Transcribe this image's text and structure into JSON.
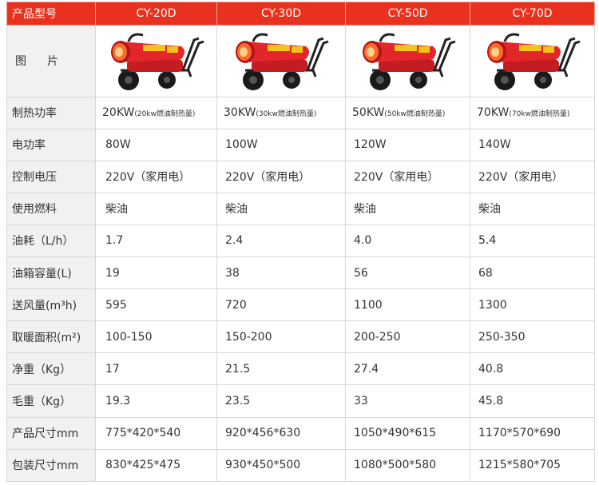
{
  "header": {
    "label": "产品型号",
    "models": [
      "CY-20D",
      "CY-30D",
      "CY-50D",
      "CY-70D"
    ]
  },
  "image_row": {
    "label": "图片"
  },
  "rows": [
    {
      "label": "制热功率",
      "values": [
        "20KW",
        "30KW",
        "50KW",
        "70KW"
      ],
      "notes": [
        "(20kw燃油制热量)",
        "(30kw燃油制热量)",
        "(50kw燃油制热量)",
        "(70kw燃油制热量)"
      ]
    },
    {
      "label": "电功率",
      "values": [
        "80W",
        "100W",
        "120W",
        "140W"
      ]
    },
    {
      "label": "控制电压",
      "values": [
        "220V（家用电）",
        "220V（家用电）",
        "220V（家用电）",
        "220V（家用电）"
      ]
    },
    {
      "label": "使用燃料",
      "values": [
        "柴油",
        "柴油",
        "柴油",
        "柴油"
      ]
    },
    {
      "label": "油耗（L/h）",
      "values": [
        "1.7",
        "2.4",
        "4.0",
        "5.4"
      ]
    },
    {
      "label": "油箱容量(L)",
      "values": [
        "19",
        "38",
        "56",
        "68"
      ]
    },
    {
      "label": "送风量(m³h)",
      "values": [
        "595",
        "720",
        "1100",
        "1300"
      ]
    },
    {
      "label": "取暖面积(m²)",
      "values": [
        "100-150",
        "150-200",
        "200-250",
        "250-350"
      ]
    },
    {
      "label": "净重（Kg）",
      "values": [
        "17",
        "21.5",
        "27.4",
        "40.8"
      ]
    },
    {
      "label": "毛重（Kg）",
      "values": [
        "19.3",
        "23.5",
        "33",
        "45.8"
      ]
    },
    {
      "label": "产品尺寸mm",
      "values": [
        "775*420*540",
        "920*456*630",
        "1050*490*615",
        "1170*570*690"
      ]
    },
    {
      "label": "包装尺寸mm",
      "values": [
        "830*425*475",
        "930*450*500",
        "1080*500*580",
        "1215*580*705"
      ]
    }
  ],
  "colors": {
    "header_bg": "#e8321f",
    "label_bg": "#f1f1f1",
    "heater_red": "#e3262a",
    "heater_yellow": "#f4c21a"
  }
}
